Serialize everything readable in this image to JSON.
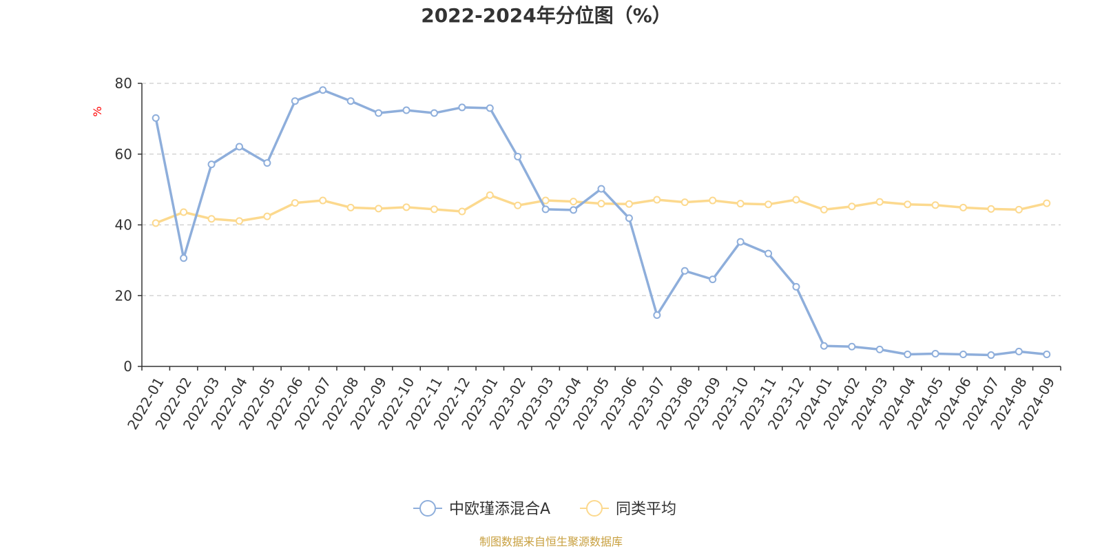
{
  "chart_data": {
    "type": "line",
    "title": "2022-2024年分位图（%）",
    "y_unit": "%",
    "ylim": [
      0,
      80
    ],
    "y_ticks": [
      0,
      20,
      40,
      60,
      80
    ],
    "grid": true,
    "legend_position": "bottom-center",
    "x": [
      "2022-01",
      "2022-02",
      "2022-03",
      "2022-04",
      "2022-05",
      "2022-06",
      "2022-07",
      "2022-08",
      "2022-09",
      "2022-10",
      "2022-11",
      "2022-12",
      "2023-01",
      "2023-02",
      "2023-03",
      "2023-04",
      "2023-05",
      "2023-06",
      "2023-07",
      "2023-08",
      "2023-09",
      "2023-10",
      "2023-11",
      "2023-12",
      "2024-01",
      "2024-02",
      "2024-03",
      "2024-04",
      "2024-05",
      "2024-06",
      "2024-07",
      "2024-08",
      "2024-09"
    ],
    "series": [
      {
        "name": "中欧瑾添混合A",
        "color": "#8eaedb",
        "values": [
          70.2,
          30.6,
          57.1,
          62.1,
          57.5,
          75.0,
          78.1,
          75.0,
          71.6,
          72.4,
          71.6,
          73.2,
          73.0,
          59.3,
          44.4,
          44.2,
          50.2,
          41.9,
          14.5,
          27.0,
          24.6,
          35.2,
          31.9,
          22.5,
          5.8,
          5.6,
          4.8,
          3.4,
          3.6,
          3.4,
          3.2,
          4.2,
          3.4
        ]
      },
      {
        "name": "同类平均",
        "color": "#fcd98e",
        "values": [
          40.5,
          43.6,
          41.7,
          41.1,
          42.4,
          46.2,
          46.9,
          44.9,
          44.6,
          45.0,
          44.4,
          43.8,
          48.4,
          45.5,
          46.9,
          46.6,
          46.0,
          45.9,
          47.1,
          46.4,
          46.9,
          46.0,
          45.8,
          47.1,
          44.3,
          45.2,
          46.5,
          45.8,
          45.6,
          44.9,
          44.5,
          44.3,
          46.1
        ]
      }
    ]
  },
  "footer": {
    "source": "制图数据来自恒生聚源数据库",
    "source_color": "#c8a040"
  },
  "axis_color": "#333333",
  "unit_color": "#ff0000",
  "grid_color": "#cccccc"
}
